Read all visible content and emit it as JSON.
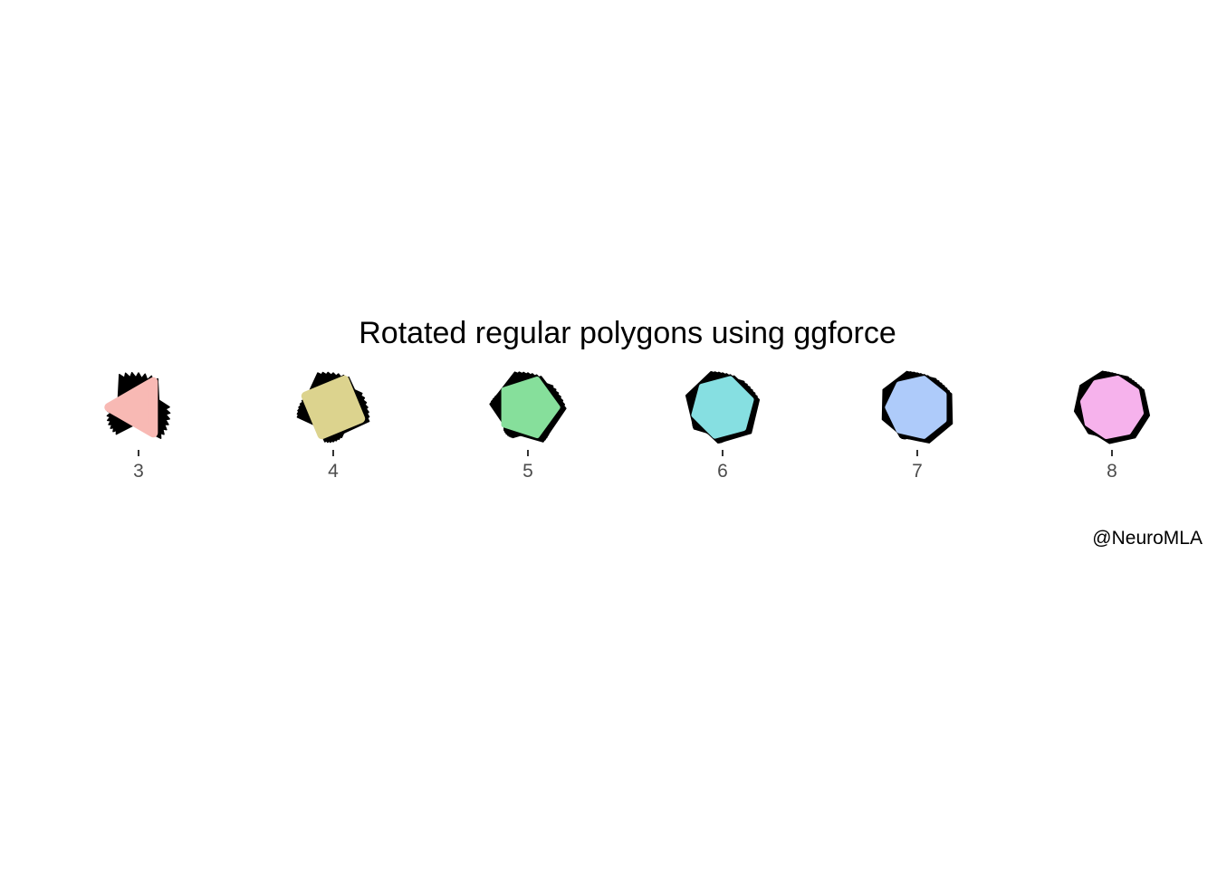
{
  "chart_data": {
    "type": "polygon-glyph",
    "title": "Rotated regular polygons using ggforce",
    "caption": "@NeuroMLA",
    "xlabel": "",
    "ylabel": "",
    "x": [
      3,
      4,
      5,
      6,
      7,
      8
    ],
    "tick_labels": [
      "3",
      "4",
      "5",
      "6",
      "7",
      "8"
    ],
    "sides": [
      3,
      4,
      5,
      6,
      7,
      8
    ],
    "fill_colors": [
      "#F8B9B4",
      "#DCD38E",
      "#86DF9B",
      "#86DFE1",
      "#AECBFA",
      "#F6B2EC"
    ],
    "outline_color": "#000000",
    "grid": false,
    "legend": "none"
  }
}
